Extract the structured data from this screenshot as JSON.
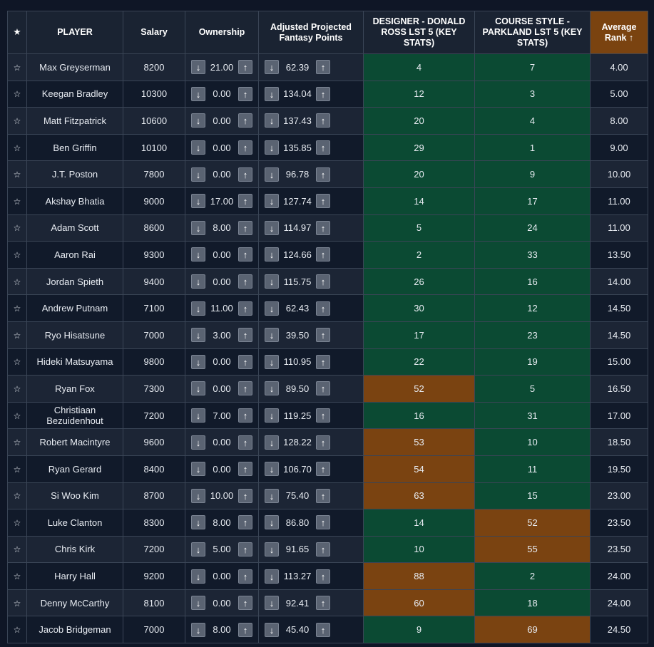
{
  "colors": {
    "good": "#0b4a33",
    "bad": "#7a4311",
    "sorted_header": "#7a4310",
    "header": "#1a2332"
  },
  "icons": {
    "star": "☆",
    "down": "↓",
    "up": "↑"
  },
  "headers": {
    "star": "★",
    "player": "PLAYER",
    "salary": "Salary",
    "ownership": "Ownership",
    "proj": "Adjusted Projected Fantasy Points",
    "designer": "DESIGNER - DONALD ROSS LST 5 (KEY STATS)",
    "course": "COURSE STYLE - PARKLAND LST 5 (KEY STATS)",
    "avg": "Average Rank ↑"
  },
  "rows": [
    {
      "player": "Max Greyserman",
      "salary": "8200",
      "own": "21.00",
      "proj": "62.39",
      "designer": "4",
      "course": "7",
      "avg": "4.00",
      "d_cls": "good",
      "c_cls": "good"
    },
    {
      "player": "Keegan Bradley",
      "salary": "10300",
      "own": "0.00",
      "proj": "134.04",
      "designer": "12",
      "course": "3",
      "avg": "5.00",
      "d_cls": "good",
      "c_cls": "good"
    },
    {
      "player": "Matt Fitzpatrick",
      "salary": "10600",
      "own": "0.00",
      "proj": "137.43",
      "designer": "20",
      "course": "4",
      "avg": "8.00",
      "d_cls": "good",
      "c_cls": "good"
    },
    {
      "player": "Ben Griffin",
      "salary": "10100",
      "own": "0.00",
      "proj": "135.85",
      "designer": "29",
      "course": "1",
      "avg": "9.00",
      "d_cls": "good",
      "c_cls": "good"
    },
    {
      "player": "J.T. Poston",
      "salary": "7800",
      "own": "0.00",
      "proj": "96.78",
      "designer": "20",
      "course": "9",
      "avg": "10.00",
      "d_cls": "good",
      "c_cls": "good"
    },
    {
      "player": "Akshay Bhatia",
      "salary": "9000",
      "own": "17.00",
      "proj": "127.74",
      "designer": "14",
      "course": "17",
      "avg": "11.00",
      "d_cls": "good",
      "c_cls": "good"
    },
    {
      "player": "Adam Scott",
      "salary": "8600",
      "own": "8.00",
      "proj": "114.97",
      "designer": "5",
      "course": "24",
      "avg": "11.00",
      "d_cls": "good",
      "c_cls": "good"
    },
    {
      "player": "Aaron Rai",
      "salary": "9300",
      "own": "0.00",
      "proj": "124.66",
      "designer": "2",
      "course": "33",
      "avg": "13.50",
      "d_cls": "good",
      "c_cls": "good"
    },
    {
      "player": "Jordan Spieth",
      "salary": "9400",
      "own": "0.00",
      "proj": "115.75",
      "designer": "26",
      "course": "16",
      "avg": "14.00",
      "d_cls": "good",
      "c_cls": "good"
    },
    {
      "player": "Andrew Putnam",
      "salary": "7100",
      "own": "11.00",
      "proj": "62.43",
      "designer": "30",
      "course": "12",
      "avg": "14.50",
      "d_cls": "good",
      "c_cls": "good"
    },
    {
      "player": "Ryo Hisatsune",
      "salary": "7000",
      "own": "3.00",
      "proj": "39.50",
      "designer": "17",
      "course": "23",
      "avg": "14.50",
      "d_cls": "good",
      "c_cls": "good"
    },
    {
      "player": "Hideki Matsuyama",
      "salary": "9800",
      "own": "0.00",
      "proj": "110.95",
      "designer": "22",
      "course": "19",
      "avg": "15.00",
      "d_cls": "good",
      "c_cls": "good"
    },
    {
      "player": "Ryan Fox",
      "salary": "7300",
      "own": "0.00",
      "proj": "89.50",
      "designer": "52",
      "course": "5",
      "avg": "16.50",
      "d_cls": "bad",
      "c_cls": "good"
    },
    {
      "player": "Christiaan Bezuidenhout",
      "salary": "7200",
      "own": "7.00",
      "proj": "119.25",
      "designer": "16",
      "course": "31",
      "avg": "17.00",
      "d_cls": "good",
      "c_cls": "good"
    },
    {
      "player": "Robert Macintyre",
      "salary": "9600",
      "own": "0.00",
      "proj": "128.22",
      "designer": "53",
      "course": "10",
      "avg": "18.50",
      "d_cls": "bad",
      "c_cls": "good"
    },
    {
      "player": "Ryan Gerard",
      "salary": "8400",
      "own": "0.00",
      "proj": "106.70",
      "designer": "54",
      "course": "11",
      "avg": "19.50",
      "d_cls": "bad",
      "c_cls": "good"
    },
    {
      "player": "Si Woo Kim",
      "salary": "8700",
      "own": "10.00",
      "proj": "75.40",
      "designer": "63",
      "course": "15",
      "avg": "23.00",
      "d_cls": "bad",
      "c_cls": "good"
    },
    {
      "player": "Luke Clanton",
      "salary": "8300",
      "own": "8.00",
      "proj": "86.80",
      "designer": "14",
      "course": "52",
      "avg": "23.50",
      "d_cls": "good",
      "c_cls": "bad"
    },
    {
      "player": "Chris Kirk",
      "salary": "7200",
      "own": "5.00",
      "proj": "91.65",
      "designer": "10",
      "course": "55",
      "avg": "23.50",
      "d_cls": "good",
      "c_cls": "bad"
    },
    {
      "player": "Harry Hall",
      "salary": "9200",
      "own": "0.00",
      "proj": "113.27",
      "designer": "88",
      "course": "2",
      "avg": "24.00",
      "d_cls": "bad",
      "c_cls": "good"
    },
    {
      "player": "Denny McCarthy",
      "salary": "8100",
      "own": "0.00",
      "proj": "92.41",
      "designer": "60",
      "course": "18",
      "avg": "24.00",
      "d_cls": "bad",
      "c_cls": "good"
    },
    {
      "player": "Jacob Bridgeman",
      "salary": "7000",
      "own": "8.00",
      "proj": "45.40",
      "designer": "9",
      "course": "69",
      "avg": "24.50",
      "d_cls": "good",
      "c_cls": "bad"
    }
  ]
}
